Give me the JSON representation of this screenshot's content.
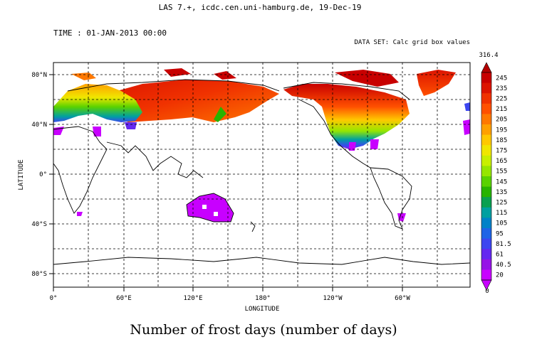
{
  "header": {
    "title": "LAS 7.+, icdc.cen.uni-hamburg.de, 19-Dec-19",
    "time": "TIME : 01-JAN-2013 00:00",
    "dataset": "DATA SET: Calc grid box values"
  },
  "map": {
    "lat_ticks": [
      "80°N",
      "40°N",
      "0°",
      "40°S",
      "80°S"
    ],
    "lon_ticks": [
      "0°",
      "60°E",
      "120°E",
      "180°",
      "120°W",
      "60°W"
    ],
    "xlabel": "LONGITUDE",
    "ylabel": "LATITUDE",
    "grid": true,
    "projection": "equirectangular, 0° to 360° longitude, 90°S to 90°N"
  },
  "colorbar": {
    "max_label": "316.4",
    "min_label": "0",
    "levels": [
      "245",
      "235",
      "225",
      "215",
      "205",
      "195",
      "185",
      "175",
      "165",
      "155",
      "145",
      "135",
      "125",
      "115",
      "105",
      "95",
      "81.5",
      "61",
      "40.5",
      "20"
    ],
    "colors": [
      "#c80000",
      "#dc1400",
      "#f03200",
      "#ff5000",
      "#ff7800",
      "#ffa000",
      "#ffc800",
      "#f0e600",
      "#c8ef00",
      "#96e600",
      "#5ad200",
      "#28b400",
      "#0aa050",
      "#00a0a0",
      "#0082c8",
      "#1e64e6",
      "#3c46f0",
      "#6428f0",
      "#9614e6",
      "#c800ff"
    ],
    "top_color": "#b40000",
    "bottom_color": "#c800ff"
  },
  "chart_data": {
    "type": "heatmap",
    "title": "Number of frost days (number of days)",
    "variable": "Number of frost days",
    "units": "number of days",
    "range": [
      0,
      316.4
    ],
    "description": "Frost days shaded over land north of ~25°N in Eurasia and North America, plus Australia, southern South America and Greenland; high values (red) in Siberia, Canada, Greenland; low values (purple) at southern margins and Australia."
  }
}
